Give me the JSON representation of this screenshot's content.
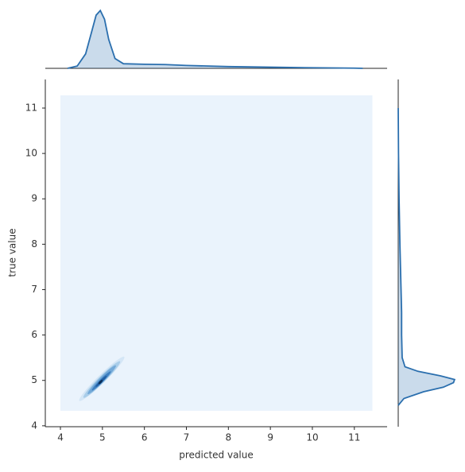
{
  "chart_data": {
    "type": "kde_joint",
    "x_label": "predicted value",
    "y_label": "true value",
    "xlim": [
      3.64,
      11.78
    ],
    "ylim": [
      3.98,
      11.63
    ],
    "xticks": [
      4,
      5,
      6,
      7,
      8,
      9,
      10,
      11
    ],
    "yticks": [
      4,
      5,
      6,
      7,
      8,
      9,
      10,
      11
    ],
    "color": "#2b6fae",
    "kde_extent": {
      "x": [
        4.0,
        11.43
      ],
      "y": [
        4.33,
        11.28
      ],
      "color": "#eaf3fc"
    },
    "contours": [
      {
        "x": [
          4.45,
          5.52
        ],
        "y": [
          4.55,
          5.52
        ],
        "color": "#d4e6f6"
      },
      {
        "x": [
          4.55,
          5.42
        ],
        "y": [
          4.62,
          5.42
        ],
        "color": "#a9cde9"
      },
      {
        "x": [
          4.65,
          5.32
        ],
        "y": [
          4.7,
          5.33
        ],
        "color": "#73a9d8"
      },
      {
        "x": [
          4.75,
          5.2
        ],
        "y": [
          4.78,
          5.2
        ],
        "color": "#3d7fc0"
      },
      {
        "x": [
          4.84,
          5.1
        ],
        "y": [
          4.86,
          5.1
        ],
        "color": "#1f5ea3"
      },
      {
        "x": [
          4.91,
          5.0
        ],
        "y": [
          4.92,
          5.01
        ],
        "color": "#0b2f5a"
      }
    ],
    "density_lim": [
      0,
      1.1
    ],
    "x_marginal": {
      "x": [
        4.17,
        4.4,
        4.6,
        4.75,
        4.85,
        4.95,
        5.05,
        5.15,
        5.3,
        5.5,
        6,
        6.5,
        7,
        8,
        9,
        10,
        11,
        11.2
      ],
      "density": [
        0,
        0.04,
        0.25,
        0.65,
        0.92,
        1.0,
        0.85,
        0.5,
        0.17,
        0.08,
        0.07,
        0.065,
        0.05,
        0.03,
        0.02,
        0.01,
        0.003,
        0
      ]
    },
    "y_marginal": {
      "y": [
        4.45,
        4.6,
        4.75,
        4.85,
        4.95,
        5.02,
        5.1,
        5.2,
        5.3,
        5.5,
        6,
        6.5,
        7,
        8,
        9,
        10,
        11
      ],
      "density": [
        0,
        0.1,
        0.45,
        0.8,
        0.98,
        1.0,
        0.75,
        0.35,
        0.12,
        0.07,
        0.06,
        0.06,
        0.05,
        0.03,
        0.015,
        0.005,
        0
      ]
    }
  }
}
